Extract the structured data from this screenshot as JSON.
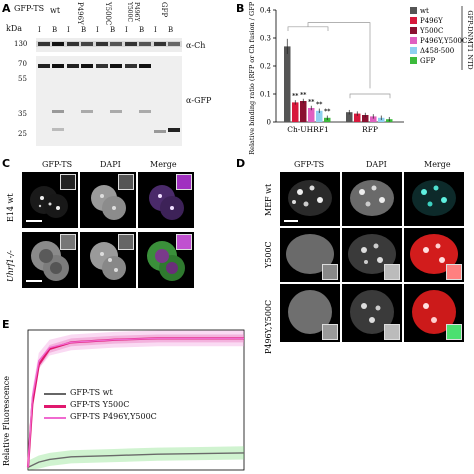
{
  "panel_A": {
    "letter": "A",
    "row_label": "GFP-TS",
    "kda_label": "kDa",
    "lanes": [
      "wt",
      "P496Y",
      "Y500C",
      "P496Y Y500C",
      "GFP"
    ],
    "lane_sub": [
      "I",
      "B",
      "I",
      "B",
      "I",
      "B",
      "I",
      "B",
      "I",
      "B"
    ],
    "markers": [
      "130",
      "70",
      "55",
      "35",
      "25"
    ],
    "antibodies": [
      "α-Ch",
      "α-GFP"
    ]
  },
  "panel_B": {
    "letter": "B",
    "colors": {
      "wt": "#555555",
      "P496Y": "#d7193c",
      "Y500C": "#8a1030",
      "P496Y,Y500C": "#e060c0",
      "d458_500": "#8fd0f0",
      "GFP": "#3cba3c"
    }
  },
  "panel_C": {
    "letter": "C",
    "columns": [
      "GFP-TS",
      "DAPI",
      "Merge"
    ],
    "rows": [
      "E14 wt",
      "Uhrf1-/-"
    ]
  },
  "panel_D": {
    "letter": "D",
    "columns": [
      "GFP-TS",
      "DAPI",
      "Merge"
    ],
    "rows": [
      "MEF wt",
      "Y500C",
      "P496Y,Y500C"
    ]
  },
  "panel_E": {
    "letter": "E",
    "ylabel": "Relative Fluorescence",
    "legend": [
      "GFP-TS wt",
      "GFP-TS Y500C",
      "GFP-TS P496Y,Y500C"
    ]
  },
  "chart_data": [
    {
      "type": "bar",
      "ylabel": "Relative binding ratio (RFP or Ch fusion / GFP fusion)",
      "ylim": [
        0,
        0.4
      ],
      "yticks": [
        "0",
        "0.1",
        "0.2",
        "0.3",
        "0.4"
      ],
      "categories": [
        "Ch-UHRF1",
        "RFP"
      ],
      "legend_title": "GFP-DNMT1 NTD",
      "significance_label": "**",
      "series": [
        {
          "name": "wt",
          "values": [
            0.27,
            0.035
          ]
        },
        {
          "name": "P496Y",
          "values": [
            0.07,
            0.03
          ]
        },
        {
          "name": "Y500C",
          "values": [
            0.075,
            0.025
          ]
        },
        {
          "name": "P496Y,Y500C",
          "values": [
            0.05,
            0.02
          ]
        },
        {
          "name": "Δ458-500",
          "values": [
            0.04,
            0.015
          ]
        },
        {
          "name": "GFP",
          "values": [
            0.015,
            0.01
          ]
        }
      ],
      "legend_placement": "right"
    },
    {
      "type": "line",
      "ylabel": "Relative Fluorescence",
      "series": [
        {
          "name": "GFP-TS wt",
          "x": [
            0,
            0.05,
            0.1,
            0.2,
            0.4,
            0.6,
            0.8,
            1
          ],
          "y": [
            0.02,
            0.06,
            0.08,
            0.1,
            0.11,
            0.12,
            0.125,
            0.13
          ]
        },
        {
          "name": "GFP-TS Y500C",
          "x": [
            0,
            0.02,
            0.05,
            0.1,
            0.2,
            0.4,
            0.6,
            0.8,
            1
          ],
          "y": [
            0.02,
            0.5,
            0.8,
            0.92,
            0.97,
            0.99,
            1.0,
            1.0,
            1.0
          ]
        },
        {
          "name": "GFP-TS P496Y,Y500C",
          "x": [
            0,
            0.02,
            0.05,
            0.1,
            0.2,
            0.4,
            0.6,
            0.8,
            1
          ],
          "y": [
            0.02,
            0.55,
            0.83,
            0.93,
            0.97,
            0.99,
            1.0,
            1.0,
            1.0
          ]
        }
      ]
    }
  ]
}
